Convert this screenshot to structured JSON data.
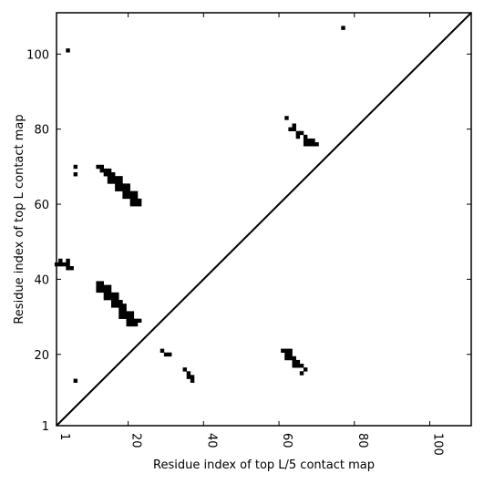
{
  "chart_data": {
    "type": "scatter",
    "title": "",
    "xlabel": "Residue index of top L/5 contact map",
    "ylabel": "Residue index of top L contact map",
    "xlim": [
      1,
      111
    ],
    "ylim": [
      1,
      111
    ],
    "xticks": [
      1,
      20,
      40,
      60,
      80,
      100
    ],
    "yticks": [
      1,
      20,
      40,
      60,
      80,
      100
    ],
    "grid": false,
    "diagonal": true,
    "series": [
      {
        "color": "#000000",
        "points": [
          [
            77,
            107
          ],
          [
            4,
            101
          ],
          [
            62,
            83
          ],
          [
            64,
            81
          ],
          [
            63,
            80
          ],
          [
            64,
            80
          ],
          [
            65,
            79
          ],
          [
            66,
            79
          ],
          [
            65,
            78
          ],
          [
            67,
            78
          ],
          [
            67,
            77
          ],
          [
            68,
            77
          ],
          [
            69,
            77
          ],
          [
            67,
            76
          ],
          [
            68,
            76
          ],
          [
            69,
            76
          ],
          [
            70,
            76
          ],
          [
            6,
            70
          ],
          [
            6,
            68
          ],
          [
            12,
            70
          ],
          [
            13,
            70
          ],
          [
            13,
            69
          ],
          [
            14,
            69
          ],
          [
            15,
            69
          ],
          [
            14,
            68
          ],
          [
            15,
            68
          ],
          [
            16,
            68
          ],
          [
            15,
            67
          ],
          [
            16,
            67
          ],
          [
            17,
            67
          ],
          [
            18,
            67
          ],
          [
            15,
            66
          ],
          [
            16,
            66
          ],
          [
            17,
            66
          ],
          [
            18,
            66
          ],
          [
            17,
            65
          ],
          [
            18,
            65
          ],
          [
            19,
            65
          ],
          [
            20,
            65
          ],
          [
            17,
            64
          ],
          [
            18,
            64
          ],
          [
            19,
            64
          ],
          [
            20,
            64
          ],
          [
            19,
            63
          ],
          [
            20,
            63
          ],
          [
            21,
            63
          ],
          [
            22,
            63
          ],
          [
            19,
            62
          ],
          [
            20,
            62
          ],
          [
            21,
            62
          ],
          [
            22,
            62
          ],
          [
            21,
            61
          ],
          [
            22,
            61
          ],
          [
            23,
            61
          ],
          [
            21,
            60
          ],
          [
            22,
            60
          ],
          [
            23,
            60
          ],
          [
            1,
            44
          ],
          [
            2,
            44
          ],
          [
            3,
            44
          ],
          [
            2,
            45
          ],
          [
            4,
            45
          ],
          [
            4,
            43
          ],
          [
            5,
            43
          ],
          [
            4,
            44
          ],
          [
            12,
            39
          ],
          [
            13,
            39
          ],
          [
            12,
            38
          ],
          [
            13,
            38
          ],
          [
            14,
            38
          ],
          [
            15,
            38
          ],
          [
            12,
            37
          ],
          [
            13,
            37
          ],
          [
            14,
            37
          ],
          [
            15,
            37
          ],
          [
            14,
            36
          ],
          [
            15,
            36
          ],
          [
            16,
            36
          ],
          [
            17,
            36
          ],
          [
            14,
            35
          ],
          [
            15,
            35
          ],
          [
            16,
            35
          ],
          [
            17,
            35
          ],
          [
            16,
            34
          ],
          [
            17,
            34
          ],
          [
            18,
            34
          ],
          [
            16,
            33
          ],
          [
            17,
            33
          ],
          [
            18,
            33
          ],
          [
            19,
            33
          ],
          [
            18,
            32
          ],
          [
            19,
            32
          ],
          [
            18,
            31
          ],
          [
            19,
            31
          ],
          [
            20,
            31
          ],
          [
            21,
            31
          ],
          [
            18,
            30
          ],
          [
            19,
            30
          ],
          [
            20,
            30
          ],
          [
            21,
            30
          ],
          [
            20,
            29
          ],
          [
            21,
            29
          ],
          [
            22,
            29
          ],
          [
            23,
            29
          ],
          [
            20,
            28
          ],
          [
            21,
            28
          ],
          [
            22,
            28
          ],
          [
            29,
            21
          ],
          [
            30,
            20
          ],
          [
            31,
            20
          ],
          [
            61,
            21
          ],
          [
            62,
            21
          ],
          [
            63,
            21
          ],
          [
            62,
            20
          ],
          [
            63,
            20
          ],
          [
            62,
            19
          ],
          [
            63,
            19
          ],
          [
            64,
            19
          ],
          [
            64,
            18
          ],
          [
            65,
            18
          ],
          [
            64,
            17
          ],
          [
            65,
            17
          ],
          [
            66,
            17
          ],
          [
            67,
            16
          ],
          [
            66,
            15
          ],
          [
            35,
            16
          ],
          [
            36,
            15
          ],
          [
            36,
            14
          ],
          [
            37,
            14
          ],
          [
            37,
            13
          ],
          [
            6,
            13
          ]
        ]
      }
    ]
  }
}
